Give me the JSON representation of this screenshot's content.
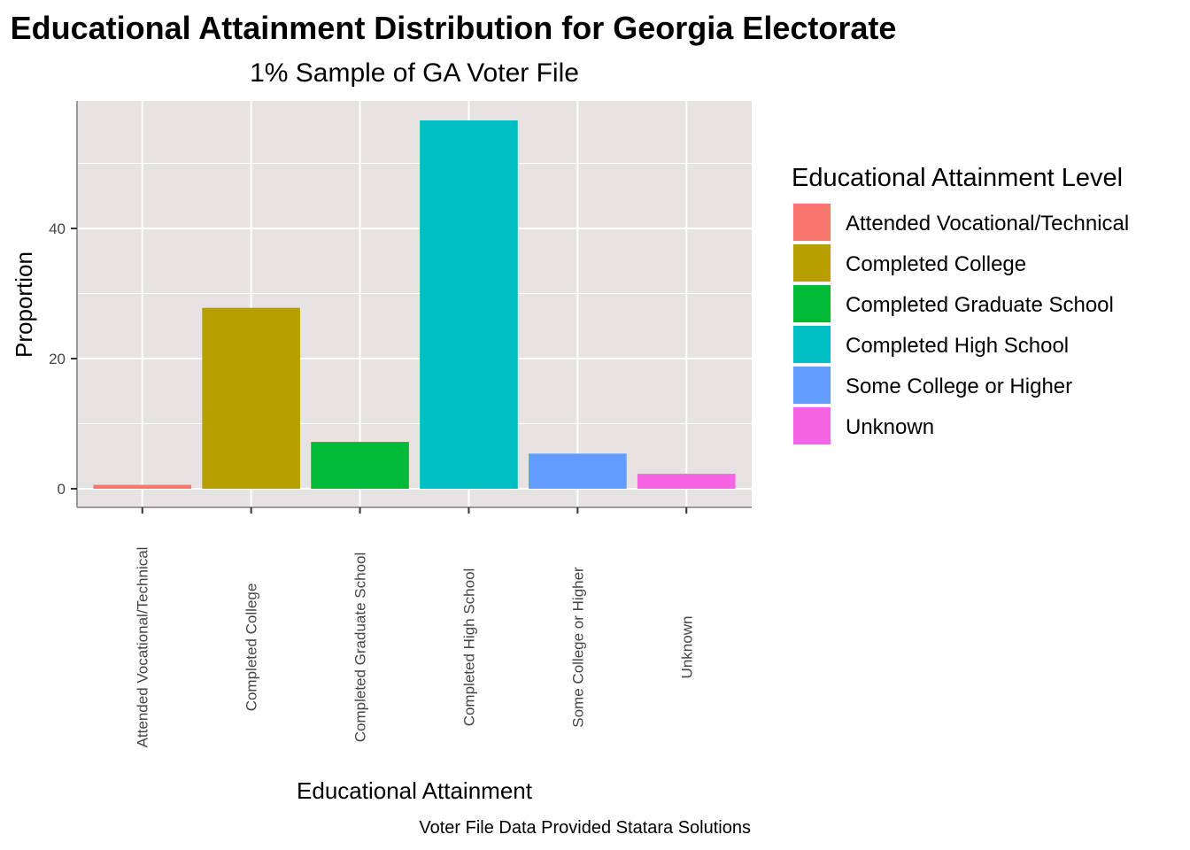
{
  "chart_data": {
    "type": "bar",
    "title": "Educational Attainment Distribution for Georgia Electorate",
    "subtitle": "1% Sample of GA Voter File",
    "xlabel": "Educational Attainment",
    "ylabel": "Proportion",
    "caption": "Voter File Data Provided Statara Solutions",
    "categories": [
      "Attended Vocational/Technical",
      "Completed College",
      "Completed Graduate School",
      "Completed High School",
      "Some College or Higher",
      "Unknown"
    ],
    "values": [
      0.6,
      27.8,
      7.2,
      56.6,
      5.4,
      2.3
    ],
    "colors": [
      "#F8766D",
      "#B79F00",
      "#00BA38",
      "#00BFC4",
      "#619CFF",
      "#F564E3"
    ],
    "ylim": [
      0,
      60
    ],
    "y_ticks": [
      0,
      20,
      40
    ],
    "grid": true,
    "legend": {
      "title": "Educational Attainment Level",
      "position": "right",
      "entries": [
        "Attended Vocational/Technical",
        "Completed College",
        "Completed Graduate School",
        "Completed High School",
        "Some College or Higher",
        "Unknown"
      ]
    }
  }
}
